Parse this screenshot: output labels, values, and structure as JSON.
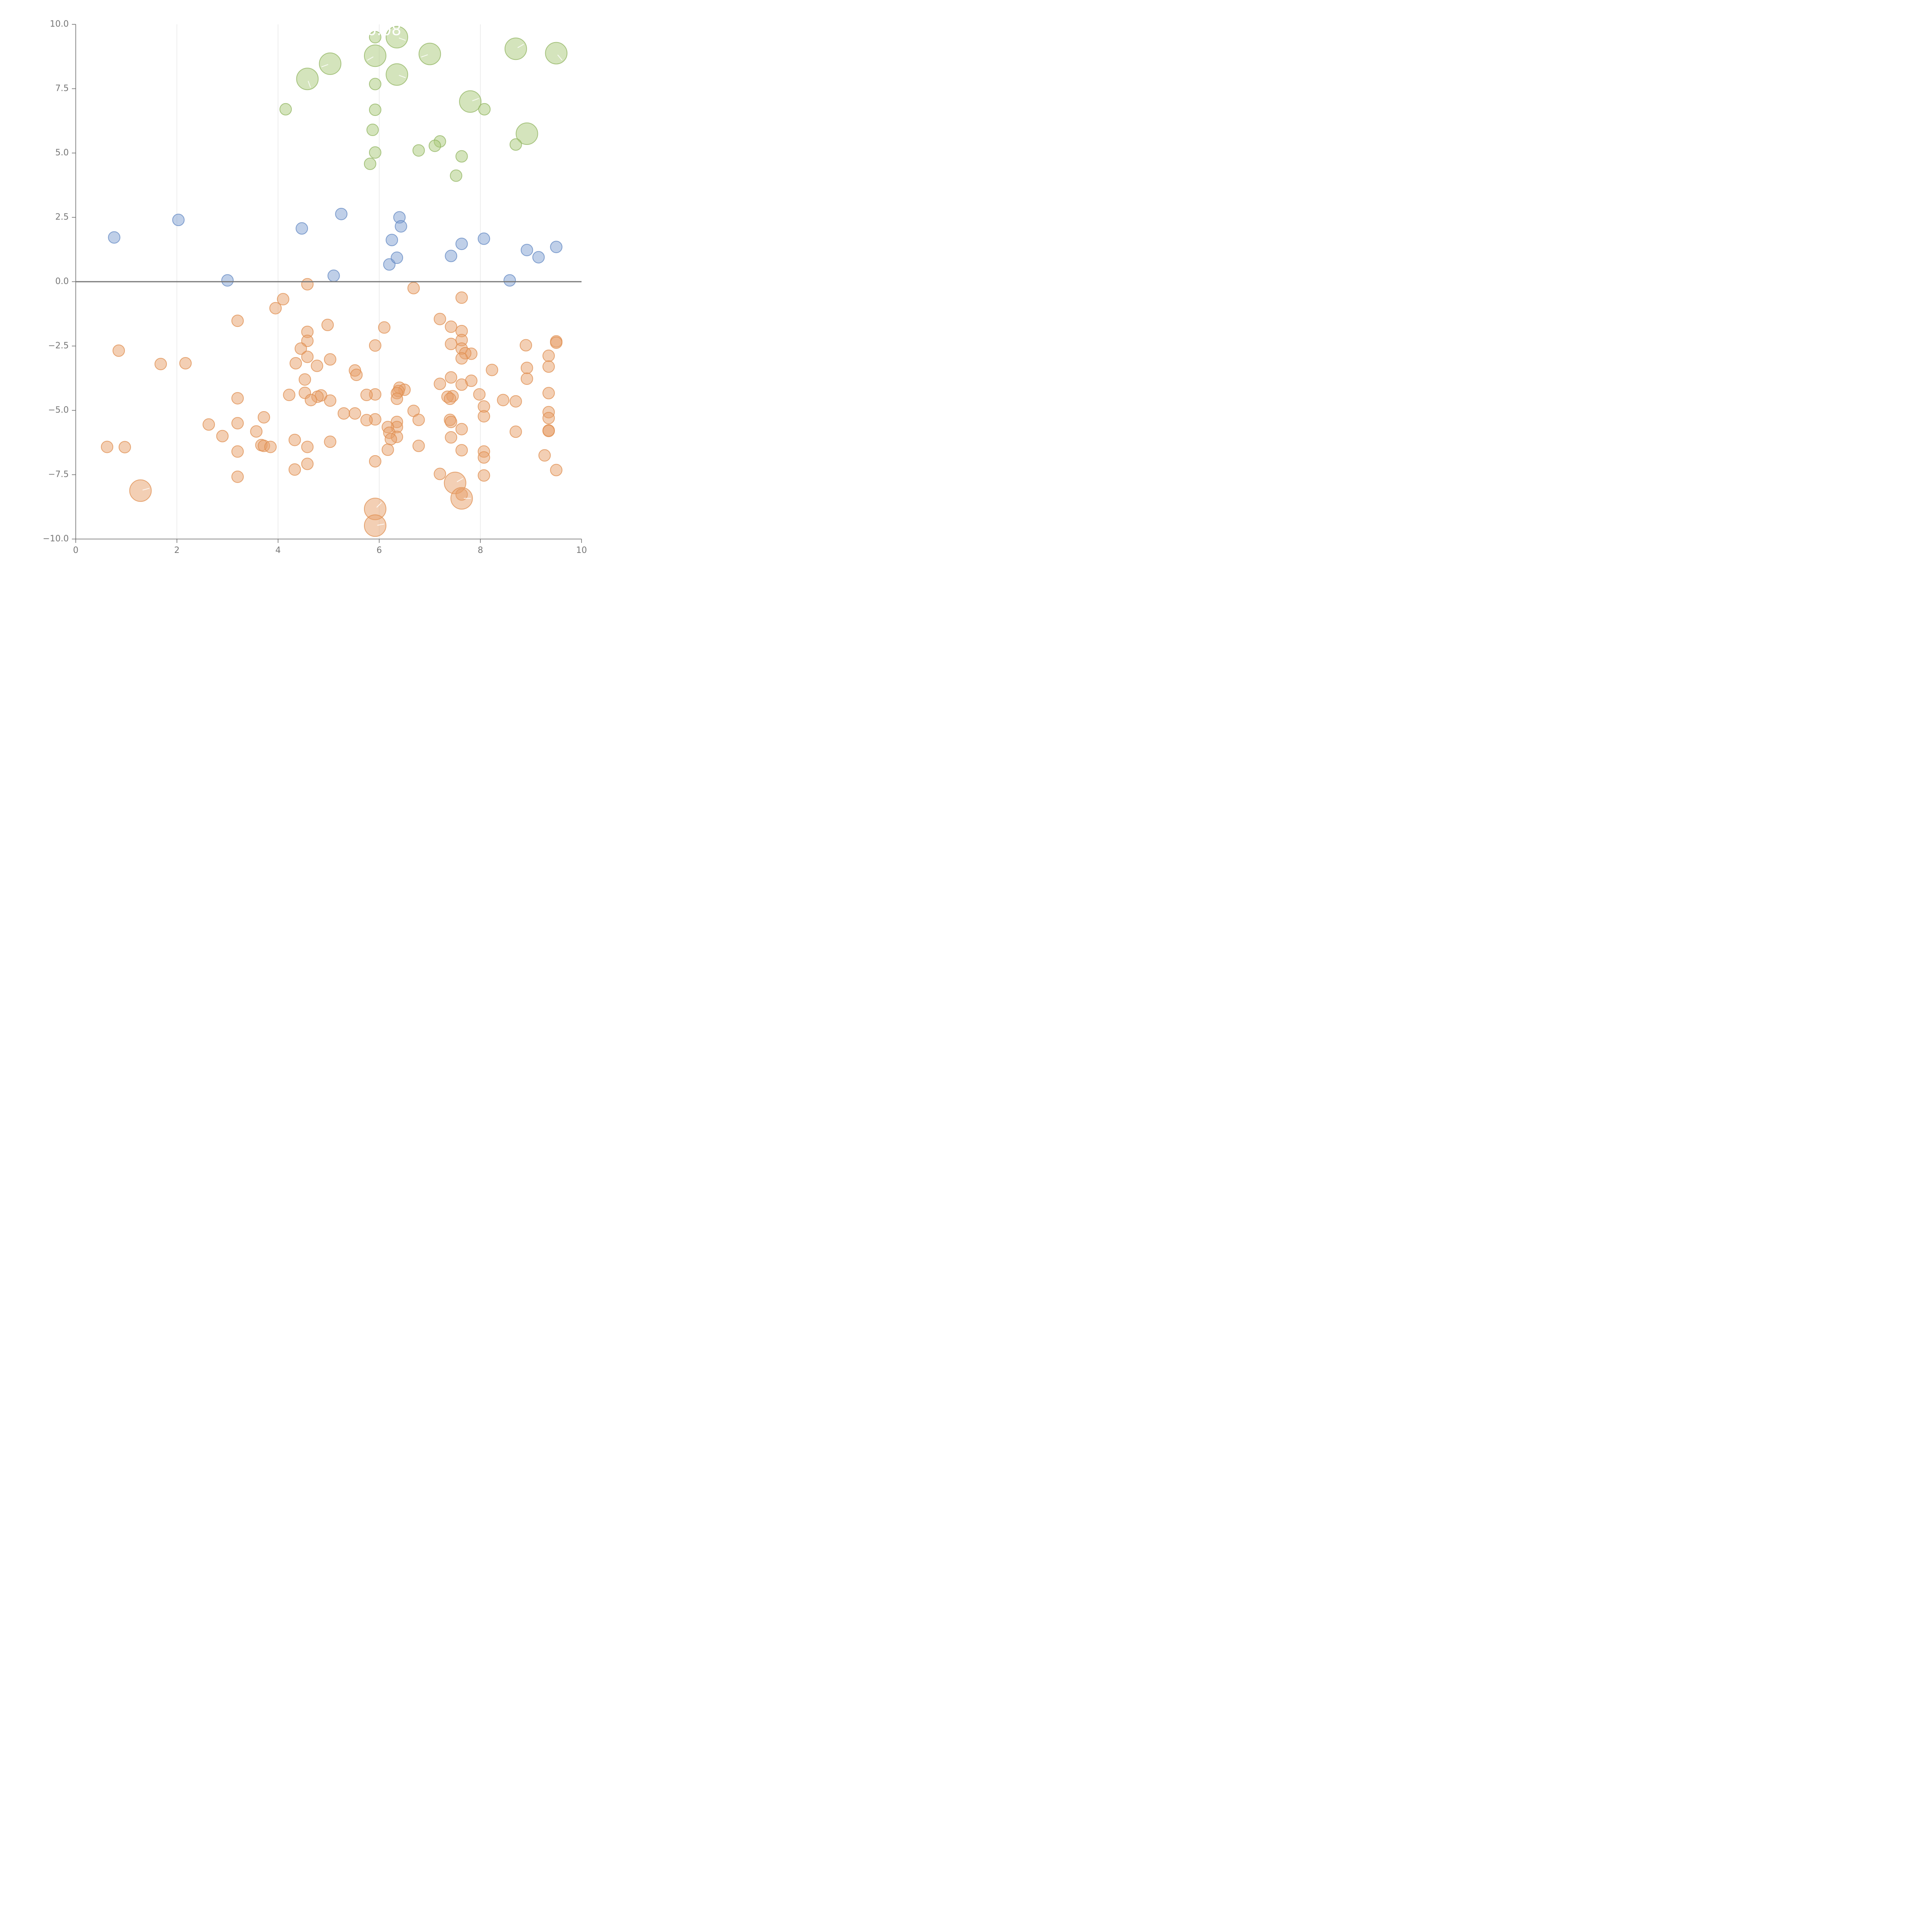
{
  "chart_data": {
    "type": "scatter",
    "title": "",
    "xlabel": "",
    "ylabel": "",
    "xlim": [
      0,
      10
    ],
    "ylim": [
      -10,
      10
    ],
    "x_ticks": [
      0,
      2,
      4,
      6,
      8,
      10
    ],
    "x_tick_labels": [
      "0",
      "2",
      "4",
      "6",
      "8",
      "10"
    ],
    "y_ticks": [
      10,
      7.5,
      5,
      2.5,
      0,
      -2.5,
      -5,
      -7.5,
      -10
    ],
    "y_tick_labels": [
      "10.0",
      "7.5",
      "5.0",
      "2.5",
      "0.0",
      "−2.5",
      "−5.0",
      "−7.5",
      "−10.0"
    ],
    "grid": "vertical",
    "zero_line": true,
    "annotation": "0.08",
    "colors": {
      "green_fill": "#a9c97a",
      "green_stroke": "#8fb35e",
      "blue_fill": "#7f9fd1",
      "blue_stroke": "#5f86c2",
      "orange_fill": "#e7a06a",
      "orange_stroke": "#df8c4c",
      "axis": "#666666",
      "grid": "#dddddd",
      "zero": "#777777",
      "text": "#777777"
    },
    "series": [
      {
        "name": "green",
        "points": [
          {
            "x": 5.92,
            "y": 9.5,
            "s": 1
          },
          {
            "x": 6.35,
            "y": 9.5,
            "s": 3,
            "a": 20
          },
          {
            "x": 5.92,
            "y": 8.78,
            "s": 3,
            "a": 150
          },
          {
            "x": 7.0,
            "y": 8.85,
            "s": 3,
            "a": 160
          },
          {
            "x": 8.7,
            "y": 9.05,
            "s": 3,
            "a": -30
          },
          {
            "x": 9.5,
            "y": 8.88,
            "s": 3,
            "a": 50
          },
          {
            "x": 5.03,
            "y": 8.47,
            "s": 3,
            "a": 160
          },
          {
            "x": 4.58,
            "y": 7.88,
            "s": 3,
            "a": 70
          },
          {
            "x": 6.35,
            "y": 8.05,
            "s": 3,
            "a": 20
          },
          {
            "x": 5.92,
            "y": 7.68,
            "s": 1
          },
          {
            "x": 7.8,
            "y": 7.0,
            "s": 3,
            "a": -20
          },
          {
            "x": 4.15,
            "y": 6.7,
            "s": 1
          },
          {
            "x": 5.92,
            "y": 6.68,
            "s": 1
          },
          {
            "x": 8.08,
            "y": 6.7,
            "s": 1
          },
          {
            "x": 5.87,
            "y": 5.9,
            "s": 1
          },
          {
            "x": 8.92,
            "y": 5.75,
            "s": 3
          },
          {
            "x": 8.7,
            "y": 5.33,
            "s": 1
          },
          {
            "x": 7.2,
            "y": 5.45,
            "s": 1
          },
          {
            "x": 7.1,
            "y": 5.28,
            "s": 1
          },
          {
            "x": 6.78,
            "y": 5.1,
            "s": 1
          },
          {
            "x": 5.92,
            "y": 5.02,
            "s": 1
          },
          {
            "x": 7.63,
            "y": 4.87,
            "s": 1
          },
          {
            "x": 5.82,
            "y": 4.58,
            "s": 1
          },
          {
            "x": 7.52,
            "y": 4.12,
            "s": 1
          }
        ]
      },
      {
        "name": "blue",
        "points": [
          {
            "x": 0.76,
            "y": 1.72
          },
          {
            "x": 2.03,
            "y": 2.4
          },
          {
            "x": 3.0,
            "y": 0.05
          },
          {
            "x": 4.47,
            "y": 2.07
          },
          {
            "x": 5.1,
            "y": 0.23
          },
          {
            "x": 5.25,
            "y": 2.63
          },
          {
            "x": 6.2,
            "y": 0.67
          },
          {
            "x": 6.25,
            "y": 1.62
          },
          {
            "x": 6.35,
            "y": 0.93
          },
          {
            "x": 6.4,
            "y": 2.5
          },
          {
            "x": 6.43,
            "y": 2.15
          },
          {
            "x": 7.42,
            "y": 1.0
          },
          {
            "x": 7.63,
            "y": 1.47
          },
          {
            "x": 8.07,
            "y": 1.67
          },
          {
            "x": 8.58,
            "y": 0.05
          },
          {
            "x": 8.92,
            "y": 1.23
          },
          {
            "x": 9.15,
            "y": 0.95
          },
          {
            "x": 9.5,
            "y": 1.35
          }
        ]
      },
      {
        "name": "orange",
        "points": [
          {
            "x": 4.58,
            "y": -0.1
          },
          {
            "x": 6.68,
            "y": -0.25
          },
          {
            "x": 7.63,
            "y": -0.62
          },
          {
            "x": 4.1,
            "y": -0.68
          },
          {
            "x": 3.95,
            "y": -1.03
          },
          {
            "x": 3.2,
            "y": -1.52
          },
          {
            "x": 7.2,
            "y": -1.45
          },
          {
            "x": 4.98,
            "y": -1.68
          },
          {
            "x": 6.1,
            "y": -1.78
          },
          {
            "x": 7.42,
            "y": -1.75
          },
          {
            "x": 4.58,
            "y": -1.95
          },
          {
            "x": 7.63,
            "y": -1.92
          },
          {
            "x": 4.58,
            "y": -2.3
          },
          {
            "x": 7.63,
            "y": -2.27
          },
          {
            "x": 9.5,
            "y": -2.32
          },
          {
            "x": 9.5,
            "y": -2.37
          },
          {
            "x": 5.92,
            "y": -2.48
          },
          {
            "x": 7.42,
            "y": -2.42
          },
          {
            "x": 8.9,
            "y": -2.47
          },
          {
            "x": 0.85,
            "y": -2.68
          },
          {
            "x": 4.45,
            "y": -2.6
          },
          {
            "x": 7.63,
            "y": -2.6
          },
          {
            "x": 7.82,
            "y": -2.8
          },
          {
            "x": 7.7,
            "y": -2.78
          },
          {
            "x": 9.35,
            "y": -2.88
          },
          {
            "x": 4.58,
            "y": -2.92
          },
          {
            "x": 5.03,
            "y": -3.02
          },
          {
            "x": 7.63,
            "y": -2.98
          },
          {
            "x": 1.68,
            "y": -3.2
          },
          {
            "x": 2.17,
            "y": -3.17
          },
          {
            "x": 4.35,
            "y": -3.17
          },
          {
            "x": 4.77,
            "y": -3.27
          },
          {
            "x": 9.35,
            "y": -3.3
          },
          {
            "x": 8.92,
            "y": -3.35
          },
          {
            "x": 5.52,
            "y": -3.45
          },
          {
            "x": 8.23,
            "y": -3.43
          },
          {
            "x": 5.55,
            "y": -3.62
          },
          {
            "x": 7.42,
            "y": -3.72
          },
          {
            "x": 8.92,
            "y": -3.77
          },
          {
            "x": 4.53,
            "y": -3.8
          },
          {
            "x": 7.82,
            "y": -3.85
          },
          {
            "x": 7.2,
            "y": -3.97
          },
          {
            "x": 7.63,
            "y": -4.0
          },
          {
            "x": 6.4,
            "y": -4.12
          },
          {
            "x": 6.5,
            "y": -4.2
          },
          {
            "x": 6.38,
            "y": -4.25
          },
          {
            "x": 6.35,
            "y": -4.33
          },
          {
            "x": 9.35,
            "y": -4.33
          },
          {
            "x": 4.53,
            "y": -4.32
          },
          {
            "x": 7.98,
            "y": -4.38
          },
          {
            "x": 4.22,
            "y": -4.4
          },
          {
            "x": 5.92,
            "y": -4.38
          },
          {
            "x": 5.75,
            "y": -4.4
          },
          {
            "x": 4.85,
            "y": -4.42
          },
          {
            "x": 4.78,
            "y": -4.47
          },
          {
            "x": 7.45,
            "y": -4.45
          },
          {
            "x": 7.35,
            "y": -4.47
          },
          {
            "x": 7.4,
            "y": -4.55
          },
          {
            "x": 6.35,
            "y": -4.55
          },
          {
            "x": 3.2,
            "y": -4.53
          },
          {
            "x": 4.65,
            "y": -4.6
          },
          {
            "x": 5.03,
            "y": -4.62
          },
          {
            "x": 8.45,
            "y": -4.6
          },
          {
            "x": 8.7,
            "y": -4.65
          },
          {
            "x": 8.07,
            "y": -4.85
          },
          {
            "x": 6.68,
            "y": -5.02
          },
          {
            "x": 9.35,
            "y": -5.07
          },
          {
            "x": 5.3,
            "y": -5.12
          },
          {
            "x": 5.52,
            "y": -5.12
          },
          {
            "x": 8.07,
            "y": -5.23
          },
          {
            "x": 3.72,
            "y": -5.27
          },
          {
            "x": 9.35,
            "y": -5.3
          },
          {
            "x": 5.92,
            "y": -5.35
          },
          {
            "x": 5.75,
            "y": -5.38
          },
          {
            "x": 6.78,
            "y": -5.37
          },
          {
            "x": 7.4,
            "y": -5.37
          },
          {
            "x": 7.42,
            "y": -5.45
          },
          {
            "x": 6.35,
            "y": -5.45
          },
          {
            "x": 2.63,
            "y": -5.55
          },
          {
            "x": 3.2,
            "y": -5.5
          },
          {
            "x": 6.35,
            "y": -5.65
          },
          {
            "x": 6.17,
            "y": -5.65
          },
          {
            "x": 7.63,
            "y": -5.73
          },
          {
            "x": 3.57,
            "y": -5.82
          },
          {
            "x": 8.7,
            "y": -5.83
          },
          {
            "x": 9.35,
            "y": -5.78
          },
          {
            "x": 9.35,
            "y": -5.8
          },
          {
            "x": 6.2,
            "y": -5.87
          },
          {
            "x": 2.9,
            "y": -6.0
          },
          {
            "x": 6.35,
            "y": -6.03
          },
          {
            "x": 7.42,
            "y": -6.05
          },
          {
            "x": 6.23,
            "y": -6.12
          },
          {
            "x": 4.33,
            "y": -6.15
          },
          {
            "x": 5.03,
            "y": -6.22
          },
          {
            "x": 3.67,
            "y": -6.35
          },
          {
            "x": 3.72,
            "y": -6.38
          },
          {
            "x": 3.85,
            "y": -6.42
          },
          {
            "x": 0.62,
            "y": -6.42
          },
          {
            "x": 0.97,
            "y": -6.43
          },
          {
            "x": 4.58,
            "y": -6.42
          },
          {
            "x": 6.78,
            "y": -6.38
          },
          {
            "x": 6.17,
            "y": -6.53
          },
          {
            "x": 7.63,
            "y": -6.55
          },
          {
            "x": 3.2,
            "y": -6.6
          },
          {
            "x": 8.07,
            "y": -6.6
          },
          {
            "x": 9.27,
            "y": -6.75
          },
          {
            "x": 8.07,
            "y": -6.83
          },
          {
            "x": 5.92,
            "y": -6.98
          },
          {
            "x": 4.58,
            "y": -7.08
          },
          {
            "x": 4.33,
            "y": -7.3
          },
          {
            "x": 9.5,
            "y": -7.32
          },
          {
            "x": 7.2,
            "y": -7.47
          },
          {
            "x": 8.07,
            "y": -7.53
          },
          {
            "x": 3.2,
            "y": -7.58
          },
          {
            "x": 7.5,
            "y": -7.82,
            "s": 3,
            "a": -30
          },
          {
            "x": 1.28,
            "y": -8.12,
            "s": 3,
            "a": -15
          },
          {
            "x": 7.63,
            "y": -8.27
          },
          {
            "x": 7.63,
            "y": -8.42,
            "s": 3,
            "a": 0
          },
          {
            "x": 5.92,
            "y": -8.83,
            "s": 3,
            "a": -45
          },
          {
            "x": 5.92,
            "y": -9.48,
            "s": 3,
            "a": -10
          }
        ]
      }
    ]
  }
}
